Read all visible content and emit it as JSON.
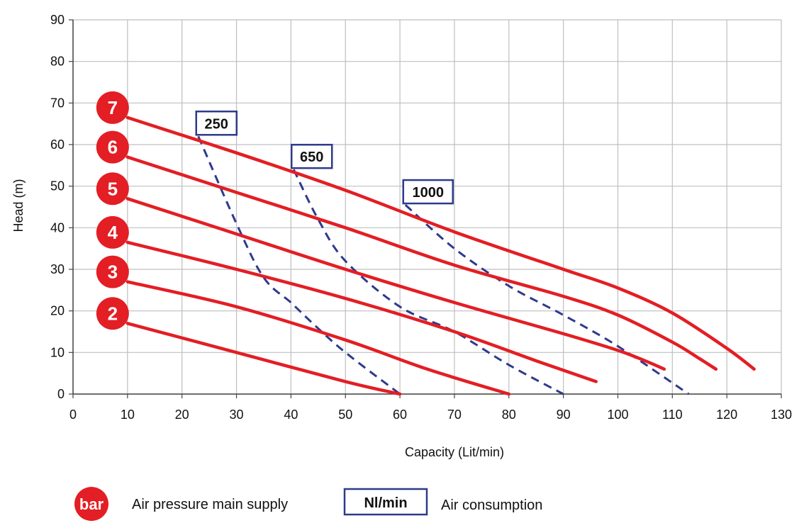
{
  "chart_data": {
    "type": "line",
    "xlabel": "Capacity (Lit/min)",
    "ylabel": "Head (m)",
    "xlim": [
      0,
      130
    ],
    "ylim": [
      0,
      90
    ],
    "xticks": [
      0,
      10,
      20,
      30,
      40,
      50,
      60,
      70,
      80,
      90,
      100,
      110,
      120,
      130
    ],
    "yticks": [
      0,
      10,
      20,
      30,
      40,
      50,
      60,
      70,
      80,
      90
    ],
    "grid": true,
    "colors": {
      "pressure": "#e31e24",
      "consumption": "#2e3a8c",
      "grid": "#bfbfbf"
    },
    "pressure_curves": [
      {
        "name": "7",
        "points": [
          [
            10,
            66.5
          ],
          [
            30,
            58
          ],
          [
            50,
            49
          ],
          [
            70,
            39
          ],
          [
            90,
            30
          ],
          [
            100,
            25.5
          ],
          [
            110,
            19.5
          ],
          [
            120,
            11
          ],
          [
            125,
            6
          ]
        ]
      },
      {
        "name": "6",
        "points": [
          [
            10,
            57
          ],
          [
            30,
            48.5
          ],
          [
            50,
            40
          ],
          [
            70,
            31
          ],
          [
            90,
            23.5
          ],
          [
            100,
            19
          ],
          [
            110,
            12.5
          ],
          [
            115,
            8.5
          ],
          [
            118,
            6
          ]
        ]
      },
      {
        "name": "5",
        "points": [
          [
            10,
            47
          ],
          [
            30,
            38.5
          ],
          [
            50,
            30
          ],
          [
            70,
            22
          ],
          [
            90,
            14.5
          ],
          [
            100,
            10.5
          ],
          [
            105,
            8
          ],
          [
            108.5,
            6
          ]
        ]
      },
      {
        "name": "4",
        "points": [
          [
            10,
            36.5
          ],
          [
            30,
            30
          ],
          [
            50,
            23
          ],
          [
            70,
            15
          ],
          [
            85,
            8
          ],
          [
            96,
            3
          ]
        ]
      },
      {
        "name": "3",
        "points": [
          [
            10,
            27
          ],
          [
            30,
            21
          ],
          [
            50,
            13
          ],
          [
            65,
            6
          ],
          [
            80,
            0
          ]
        ]
      },
      {
        "name": "2",
        "points": [
          [
            10,
            17
          ],
          [
            30,
            10
          ],
          [
            50,
            3
          ],
          [
            60,
            0
          ]
        ]
      }
    ],
    "consumption_curves": [
      {
        "name": "250",
        "points": [
          [
            23,
            62
          ],
          [
            30,
            41
          ],
          [
            35,
            28
          ],
          [
            40,
            22
          ],
          [
            44,
            17
          ],
          [
            50,
            10
          ],
          [
            60,
            0
          ]
        ]
      },
      {
        "name": "650",
        "points": [
          [
            40.5,
            54
          ],
          [
            45,
            42
          ],
          [
            50,
            32
          ],
          [
            60,
            21
          ],
          [
            70,
            15
          ],
          [
            80,
            7
          ],
          [
            90,
            0
          ]
        ]
      },
      {
        "name": "1000",
        "points": [
          [
            61,
            45.5
          ],
          [
            70,
            35
          ],
          [
            80,
            26
          ],
          [
            90,
            19
          ],
          [
            100,
            11.5
          ],
          [
            113,
            0
          ]
        ]
      }
    ]
  },
  "legend": {
    "badge_label": "bar",
    "badge_text": "Air pressure main supply",
    "box_label": "Nl/min",
    "box_text": "Air consumption"
  }
}
